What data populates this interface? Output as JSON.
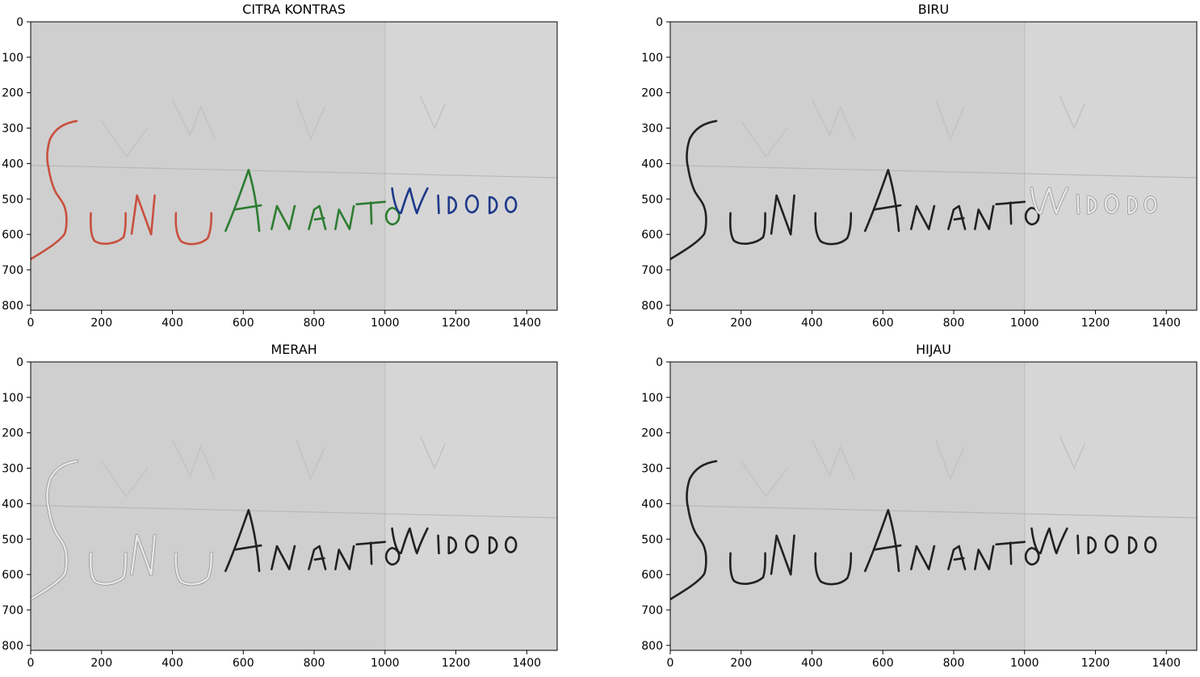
{
  "figure": {
    "panels": [
      {
        "id": "kontras",
        "title": "CITRA KONTRAS",
        "mode": "color"
      },
      {
        "id": "biru",
        "title": "BIRU",
        "mode": "blue"
      },
      {
        "id": "merah",
        "title": "MERAH",
        "mode": "red"
      },
      {
        "id": "hijau",
        "title": "HIJAU",
        "mode": "green"
      }
    ],
    "xticks": [
      "0",
      "200",
      "400",
      "600",
      "800",
      "1000",
      "1200",
      "1400"
    ],
    "yticks": [
      "0",
      "100",
      "200",
      "300",
      "400",
      "500",
      "600",
      "700",
      "800"
    ],
    "handwriting": {
      "word1": "SUNU",
      "word2": "ANANTO",
      "word3": "WIDODO",
      "text": "SUNU ANANTO WIDODO"
    },
    "colors": {
      "paper": "#cfcfcf",
      "word1": "#c85040",
      "word2": "#2e7d32",
      "word3": "#1e3a8a",
      "dark": "#222222",
      "pale": "#e6e6e6"
    }
  }
}
